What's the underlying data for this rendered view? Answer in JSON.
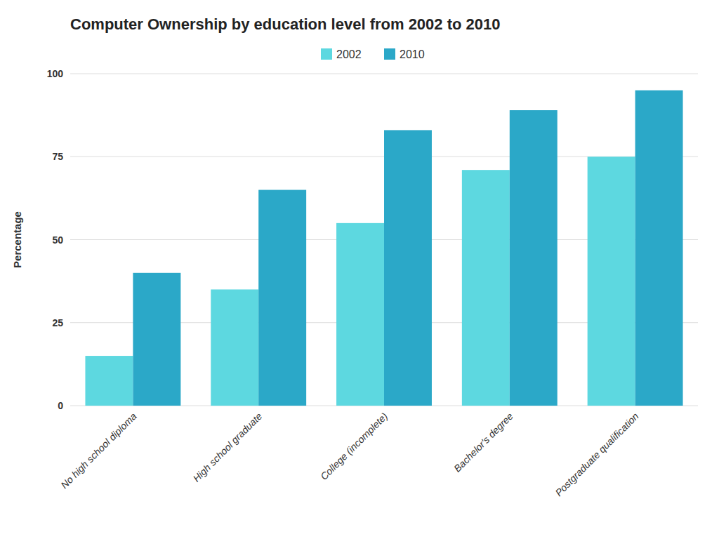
{
  "chart_data": {
    "type": "bar",
    "title": "Computer Ownership by education level from 2002 to 2010",
    "ylabel": "Percentage",
    "categories": [
      "No high school diploma",
      "High school graduate",
      "College (incomplete)",
      "Bachelor's degree",
      "Postgraduate qualification"
    ],
    "series": [
      {
        "name": "2002",
        "color": "#5DD8E0",
        "values": [
          15,
          35,
          55,
          71,
          75
        ]
      },
      {
        "name": "2010",
        "color": "#2BA8C8",
        "values": [
          40,
          65,
          83,
          89,
          95
        ]
      }
    ],
    "ylim": [
      0,
      100
    ],
    "yticks": [
      0,
      25,
      50,
      75,
      100
    ],
    "grid": true,
    "legend": "top"
  }
}
